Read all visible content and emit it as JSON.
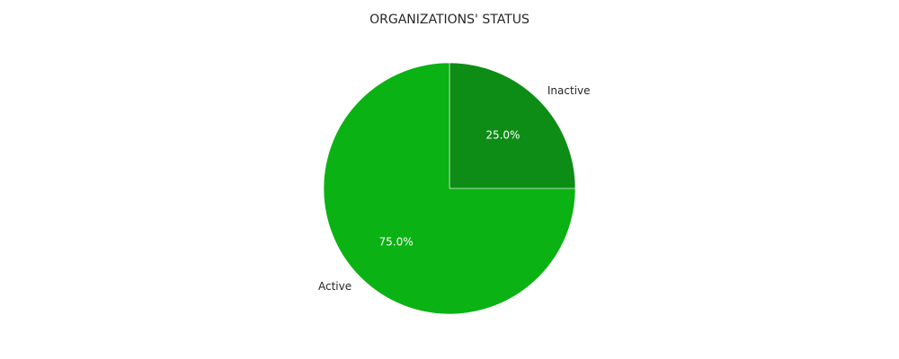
{
  "chart_data": {
    "type": "pie",
    "title": "ORGANIZATIONS' STATUS",
    "slices": [
      {
        "label": "Inactive",
        "value": 25.0,
        "pct_label": "25.0%",
        "color": "#0e8d16"
      },
      {
        "label": "Active",
        "value": 75.0,
        "pct_label": "75.0%",
        "color": "#0bb213"
      }
    ],
    "start_angle_deg": 90,
    "direction": "clockwise",
    "edge_color": "#ffffff"
  }
}
